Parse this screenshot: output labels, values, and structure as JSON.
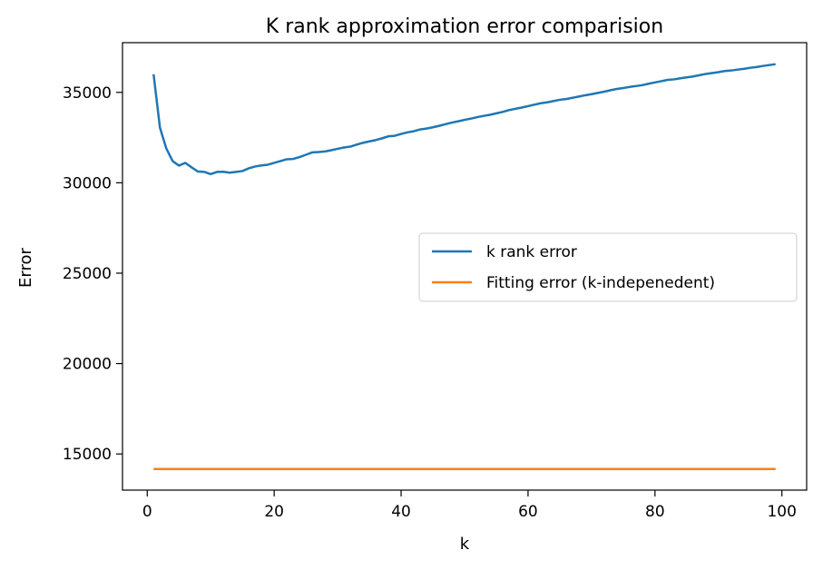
{
  "chart_data": {
    "type": "line",
    "title": "K rank approximation error comparision",
    "xlabel": "k",
    "ylabel": "Error",
    "xlim": [
      -3.9,
      103.9
    ],
    "ylim": [
      13000,
      37750
    ],
    "xticks": [
      0,
      20,
      40,
      60,
      80,
      100
    ],
    "yticks": [
      15000,
      20000,
      25000,
      30000,
      35000
    ],
    "legend_position": "center-right",
    "series": [
      {
        "name": "k rank error",
        "color": "#1f77b4",
        "x": [
          1,
          2,
          3,
          4,
          5,
          6,
          7,
          8,
          9,
          10,
          11,
          12,
          13,
          14,
          15,
          16,
          17,
          18,
          19,
          20,
          21,
          22,
          23,
          24,
          25,
          26,
          27,
          28,
          29,
          30,
          31,
          32,
          33,
          34,
          35,
          36,
          37,
          38,
          39,
          40,
          41,
          42,
          43,
          44,
          45,
          46,
          47,
          48,
          49,
          50,
          51,
          52,
          53,
          54,
          55,
          56,
          57,
          58,
          59,
          60,
          61,
          62,
          63,
          64,
          65,
          66,
          67,
          68,
          69,
          70,
          71,
          72,
          73,
          74,
          75,
          76,
          77,
          78,
          79,
          80,
          81,
          82,
          83,
          84,
          85,
          86,
          87,
          88,
          89,
          90,
          91,
          92,
          93,
          94,
          95,
          96,
          97,
          98,
          99
        ],
        "values": [
          36000,
          33050,
          31900,
          31200,
          30950,
          31100,
          30850,
          30620,
          30600,
          30480,
          30600,
          30610,
          30560,
          30600,
          30650,
          30800,
          30900,
          30960,
          31000,
          31100,
          31200,
          31300,
          31320,
          31420,
          31550,
          31680,
          31700,
          31730,
          31800,
          31880,
          31950,
          32000,
          32110,
          32210,
          32290,
          32360,
          32460,
          32570,
          32600,
          32700,
          32790,
          32850,
          32950,
          33000,
          33070,
          33150,
          33240,
          33330,
          33400,
          33480,
          33550,
          33630,
          33700,
          33760,
          33840,
          33920,
          34020,
          34090,
          34160,
          34240,
          34320,
          34400,
          34450,
          34520,
          34590,
          34630,
          34700,
          34770,
          34840,
          34900,
          34970,
          35040,
          35120,
          35190,
          35240,
          35300,
          35350,
          35400,
          35480,
          35550,
          35620,
          35690,
          35720,
          35780,
          35830,
          35880,
          35950,
          36020,
          36070,
          36120,
          36180,
          36210,
          36260,
          36300,
          36360,
          36400,
          36460,
          36510,
          36560
        ]
      },
      {
        "name": "Fitting error (k-indepenedent)",
        "color": "#ff7f0e",
        "x": [
          1,
          99
        ],
        "values": [
          14170,
          14170
        ]
      }
    ]
  }
}
